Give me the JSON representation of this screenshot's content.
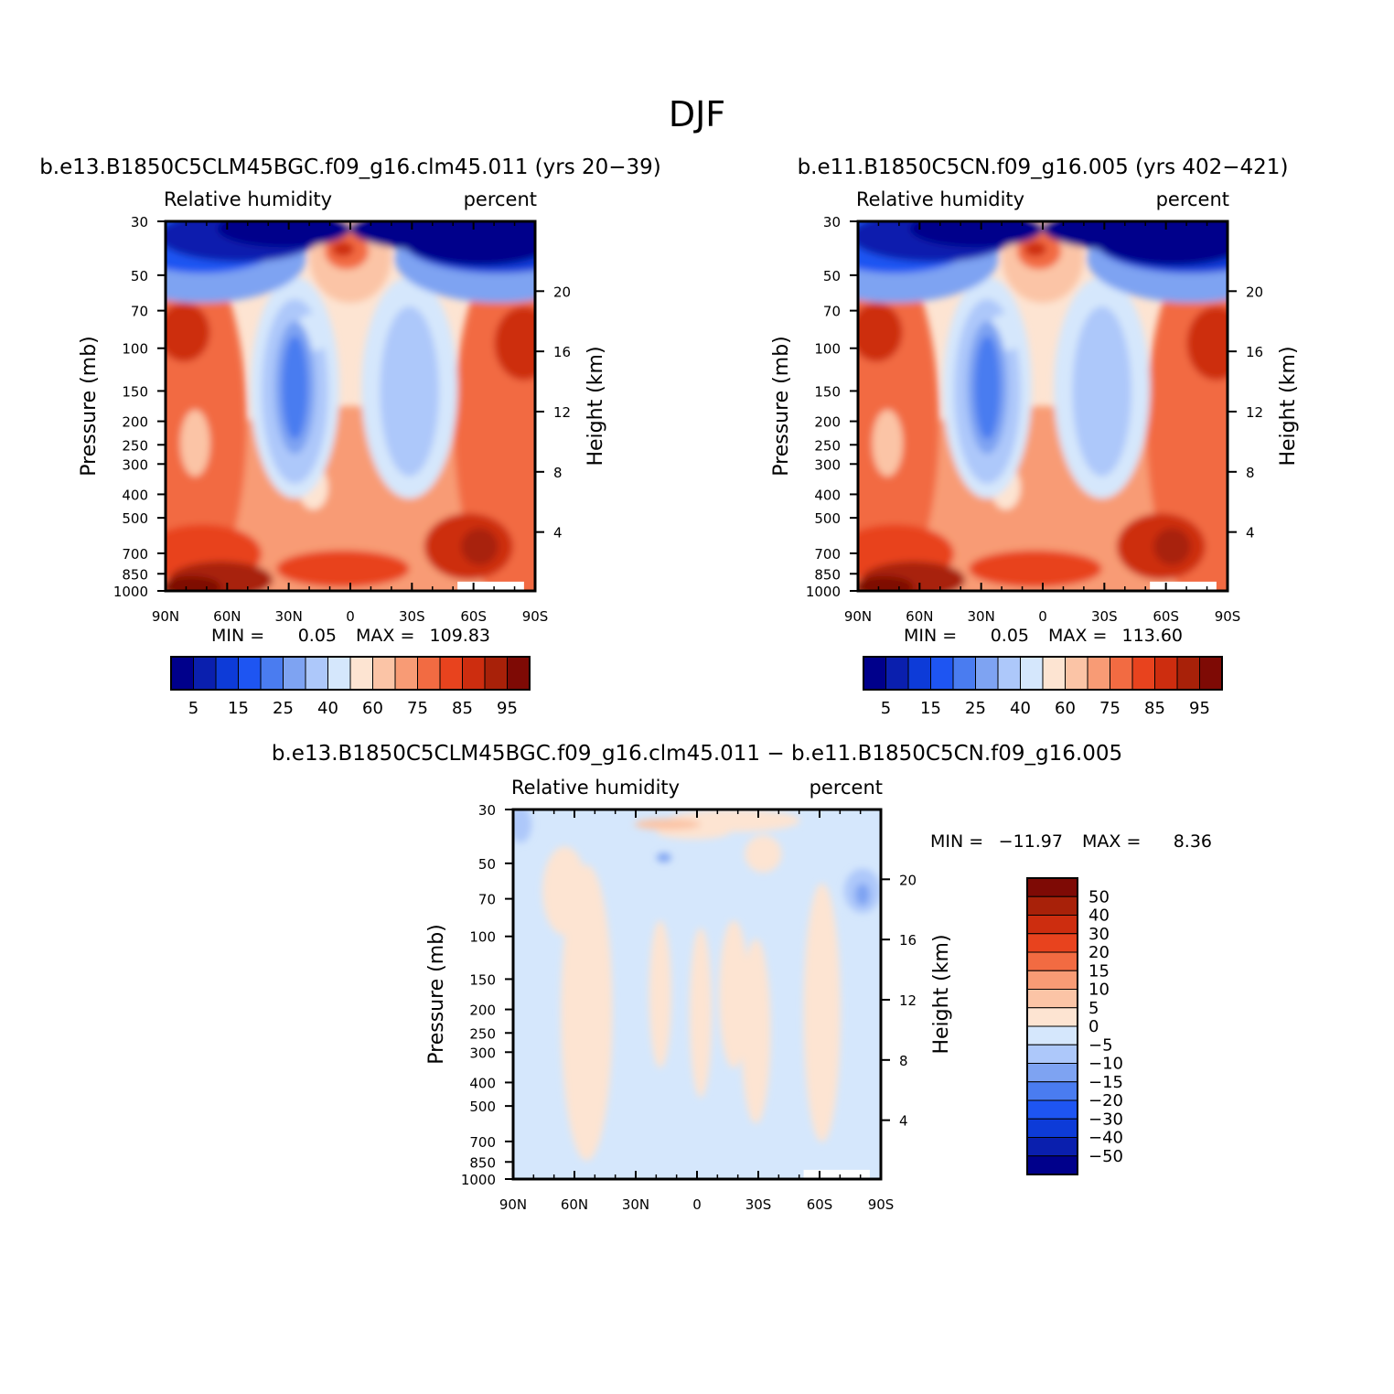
{
  "figure": {
    "title": "DJF"
  },
  "colors": {
    "abs_levels": [
      "#00008b",
      "#0a1fae",
      "#0d3bd8",
      "#1e55f2",
      "#4a7cf0",
      "#7ea3f2",
      "#adc8fa",
      "#d5e7fc",
      "#fde4d2",
      "#fbc4a6",
      "#f89b75",
      "#f26b42",
      "#e8431e",
      "#cd2d0f",
      "#a82109",
      "#7e0a05"
    ],
    "diff_levels": [
      "#00008b",
      "#0a1fae",
      "#0d3bd8",
      "#1e55f2",
      "#4a7cf0",
      "#7ea3f2",
      "#adc8fa",
      "#d5e7fc",
      "#fde4d2",
      "#fbc4a6",
      "#f89b75",
      "#f26b42",
      "#e8431e",
      "#cd2d0f",
      "#a82109",
      "#7e0a05"
    ]
  },
  "chart_data": [
    {
      "type": "heatmap",
      "title": "b.e13.B1850C5CLM45BGC.f09_g16.clm45.011 (yrs 20−39)",
      "left_label": "Relative humidity",
      "right_label": "percent",
      "ylabel": "Pressure (mb)",
      "y2label": "Height (km)",
      "x_ticks": [
        "90N",
        "60N",
        "30N",
        "0",
        "30S",
        "60S",
        "90S"
      ],
      "y_ticks": [
        "30",
        "50",
        "70",
        "100",
        "150",
        "200",
        "250",
        "300",
        "400",
        "500",
        "700",
        "850",
        "1000"
      ],
      "y2_ticks": [
        "20",
        "16",
        "12",
        "8",
        "4"
      ],
      "min_label": "MIN =",
      "min_value": "0.05",
      "max_label": "MAX =",
      "max_value": "109.83",
      "colorbar_labels": [
        "5",
        "15",
        "25",
        "40",
        "60",
        "75",
        "85",
        "95"
      ]
    },
    {
      "type": "heatmap",
      "title": "b.e11.B1850C5CN.f09_g16.005 (yrs 402−421)",
      "left_label": "Relative humidity",
      "right_label": "percent",
      "ylabel": "Pressure (mb)",
      "y2label": "Height (km)",
      "x_ticks": [
        "90N",
        "60N",
        "30N",
        "0",
        "30S",
        "60S",
        "90S"
      ],
      "y_ticks": [
        "30",
        "50",
        "70",
        "100",
        "150",
        "200",
        "250",
        "300",
        "400",
        "500",
        "700",
        "850",
        "1000"
      ],
      "y2_ticks": [
        "20",
        "16",
        "12",
        "8",
        "4"
      ],
      "min_label": "MIN =",
      "min_value": "0.05",
      "max_label": "MAX =",
      "max_value": "113.60",
      "colorbar_labels": [
        "5",
        "15",
        "25",
        "40",
        "60",
        "75",
        "85",
        "95"
      ]
    },
    {
      "type": "heatmap",
      "title": "b.e13.B1850C5CLM45BGC.f09_g16.clm45.011 − b.e11.B1850C5CN.f09_g16.005",
      "left_label": "Relative humidity",
      "right_label": "percent",
      "ylabel": "Pressure (mb)",
      "y2label": "Height (km)",
      "x_ticks": [
        "90N",
        "60N",
        "30N",
        "0",
        "30S",
        "60S",
        "90S"
      ],
      "y_ticks": [
        "30",
        "50",
        "70",
        "100",
        "150",
        "200",
        "250",
        "300",
        "400",
        "500",
        "700",
        "850",
        "1000"
      ],
      "y2_ticks": [
        "20",
        "16",
        "12",
        "8",
        "4"
      ],
      "min_label": "MIN =",
      "min_value": "−11.97",
      "max_label": "MAX =",
      "max_value": "8.36",
      "colorbar_labels": [
        "50",
        "40",
        "30",
        "20",
        "15",
        "10",
        "5",
        "0",
        "−5",
        "−10",
        "−15",
        "−20",
        "−30",
        "−40",
        "−50"
      ]
    }
  ]
}
